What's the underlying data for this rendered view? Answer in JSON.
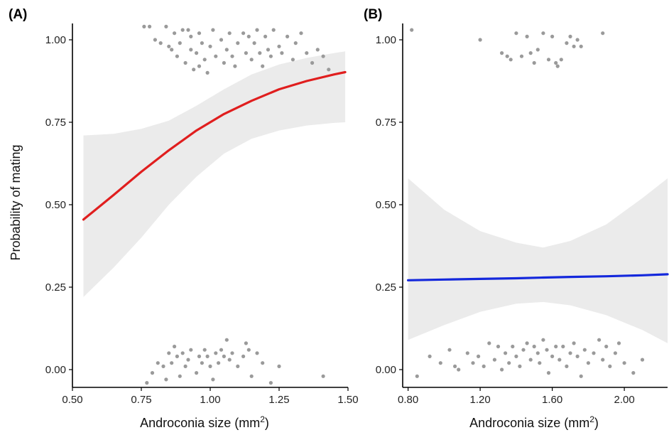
{
  "chart_data": [
    {
      "type": "line",
      "panel_label": "(A)",
      "xlabel": "Androconia size (mm²)",
      "ylabel": "Probability of mating",
      "xlim": [
        0.5,
        1.5
      ],
      "ylim": [
        0,
        1
      ],
      "x_ticks": [
        "0.50",
        "0.75",
        "1.00",
        "1.25",
        "1.50"
      ],
      "y_ticks": [
        "0.00",
        "0.25",
        "0.50",
        "0.75",
        "1.00"
      ],
      "grid": false,
      "line_color": "#e01e1e",
      "fit": {
        "x": [
          0.54,
          0.65,
          0.75,
          0.85,
          0.95,
          1.05,
          1.15,
          1.25,
          1.35,
          1.45,
          1.49
        ],
        "y": [
          0.455,
          0.53,
          0.6,
          0.665,
          0.725,
          0.775,
          0.815,
          0.85,
          0.875,
          0.895,
          0.902
        ],
        "lower": [
          0.22,
          0.31,
          0.4,
          0.5,
          0.585,
          0.655,
          0.7,
          0.725,
          0.74,
          0.748,
          0.75
        ],
        "upper": [
          0.71,
          0.715,
          0.73,
          0.755,
          0.8,
          0.85,
          0.895,
          0.925,
          0.945,
          0.96,
          0.965
        ]
      },
      "points": [
        {
          "x": 0.76,
          "y": 1.04
        },
        {
          "x": 0.78,
          "y": 1.04
        },
        {
          "x": 0.8,
          "y": 1.0
        },
        {
          "x": 0.82,
          "y": 0.99
        },
        {
          "x": 0.84,
          "y": 1.04
        },
        {
          "x": 0.85,
          "y": 0.98
        },
        {
          "x": 0.86,
          "y": 0.97
        },
        {
          "x": 0.87,
          "y": 1.02
        },
        {
          "x": 0.88,
          "y": 0.95
        },
        {
          "x": 0.89,
          "y": 0.99
        },
        {
          "x": 0.9,
          "y": 1.03
        },
        {
          "x": 0.91,
          "y": 0.93
        },
        {
          "x": 0.92,
          "y": 1.03
        },
        {
          "x": 0.93,
          "y": 0.97
        },
        {
          "x": 0.94,
          "y": 0.91
        },
        {
          "x": 0.95,
          "y": 0.96
        },
        {
          "x": 0.96,
          "y": 0.92
        },
        {
          "x": 0.97,
          "y": 0.99
        },
        {
          "x": 0.98,
          "y": 0.94
        },
        {
          "x": 0.99,
          "y": 0.9
        },
        {
          "x": 1.0,
          "y": 0.98
        },
        {
          "x": 1.01,
          "y": 1.03
        },
        {
          "x": 1.02,
          "y": 0.95
        },
        {
          "x": 1.04,
          "y": 1.0
        },
        {
          "x": 1.05,
          "y": 0.93
        },
        {
          "x": 1.06,
          "y": 0.97
        },
        {
          "x": 1.07,
          "y": 1.02
        },
        {
          "x": 1.08,
          "y": 0.95
        },
        {
          "x": 1.09,
          "y": 0.92
        },
        {
          "x": 1.1,
          "y": 0.99
        },
        {
          "x": 1.12,
          "y": 1.02
        },
        {
          "x": 1.13,
          "y": 0.96
        },
        {
          "x": 1.14,
          "y": 1.01
        },
        {
          "x": 1.15,
          "y": 0.94
        },
        {
          "x": 1.16,
          "y": 0.99
        },
        {
          "x": 1.17,
          "y": 1.03
        },
        {
          "x": 1.18,
          "y": 0.96
        },
        {
          "x": 1.19,
          "y": 0.92
        },
        {
          "x": 1.2,
          "y": 1.01
        },
        {
          "x": 1.21,
          "y": 0.97
        },
        {
          "x": 1.22,
          "y": 0.95
        },
        {
          "x": 1.23,
          "y": 1.03
        },
        {
          "x": 1.25,
          "y": 0.98
        },
        {
          "x": 1.26,
          "y": 0.96
        },
        {
          "x": 1.28,
          "y": 1.01
        },
        {
          "x": 1.3,
          "y": 0.94
        },
        {
          "x": 1.31,
          "y": 0.99
        },
        {
          "x": 1.33,
          "y": 1.02
        },
        {
          "x": 1.35,
          "y": 0.96
        },
        {
          "x": 1.37,
          "y": 0.93
        },
        {
          "x": 1.39,
          "y": 0.97
        },
        {
          "x": 1.41,
          "y": 0.95
        },
        {
          "x": 1.43,
          "y": 0.91
        },
        {
          "x": 0.93,
          "y": 1.01
        },
        {
          "x": 0.96,
          "y": 1.02
        },
        {
          "x": 0.77,
          "y": -0.04
        },
        {
          "x": 0.79,
          "y": -0.01
        },
        {
          "x": 0.81,
          "y": 0.02
        },
        {
          "x": 0.83,
          "y": 0.01
        },
        {
          "x": 0.84,
          "y": -0.03
        },
        {
          "x": 0.85,
          "y": 0.05
        },
        {
          "x": 0.86,
          "y": 0.02
        },
        {
          "x": 0.87,
          "y": 0.07
        },
        {
          "x": 0.88,
          "y": 0.04
        },
        {
          "x": 0.89,
          "y": -0.02
        },
        {
          "x": 0.9,
          "y": 0.05
        },
        {
          "x": 0.91,
          "y": 0.01
        },
        {
          "x": 0.92,
          "y": 0.03
        },
        {
          "x": 0.93,
          "y": 0.06
        },
        {
          "x": 0.95,
          "y": -0.01
        },
        {
          "x": 0.96,
          "y": 0.04
        },
        {
          "x": 0.97,
          "y": 0.02
        },
        {
          "x": 0.98,
          "y": 0.06
        },
        {
          "x": 0.99,
          "y": 0.04
        },
        {
          "x": 1.0,
          "y": 0.01
        },
        {
          "x": 1.01,
          "y": -0.03
        },
        {
          "x": 1.02,
          "y": 0.05
        },
        {
          "x": 1.03,
          "y": 0.02
        },
        {
          "x": 1.04,
          "y": 0.06
        },
        {
          "x": 1.05,
          "y": 0.04
        },
        {
          "x": 1.06,
          "y": 0.09
        },
        {
          "x": 1.07,
          "y": 0.03
        },
        {
          "x": 1.08,
          "y": 0.05
        },
        {
          "x": 1.1,
          "y": 0.01
        },
        {
          "x": 1.12,
          "y": 0.04
        },
        {
          "x": 1.13,
          "y": 0.08
        },
        {
          "x": 1.14,
          "y": 0.06
        },
        {
          "x": 1.15,
          "y": -0.02
        },
        {
          "x": 1.17,
          "y": 0.05
        },
        {
          "x": 1.19,
          "y": 0.02
        },
        {
          "x": 1.22,
          "y": -0.04
        },
        {
          "x": 1.25,
          "y": 0.01
        },
        {
          "x": 1.41,
          "y": -0.02
        }
      ]
    },
    {
      "type": "line",
      "panel_label": "(B)",
      "xlabel": "Androconia size (mm²)",
      "ylabel": "",
      "xlim": [
        0.77,
        2.24
      ],
      "ylim": [
        0,
        1
      ],
      "x_ticks": [
        "0.80",
        "1.20",
        "1.60",
        "2.00"
      ],
      "y_ticks": [
        "0.00",
        "0.25",
        "0.50",
        "0.75",
        "1.00"
      ],
      "grid": false,
      "line_color": "#1428dc",
      "fit": {
        "x": [
          0.8,
          1.0,
          1.2,
          1.4,
          1.55,
          1.7,
          1.9,
          2.1,
          2.24
        ],
        "y": [
          0.271,
          0.273,
          0.275,
          0.277,
          0.279,
          0.281,
          0.283,
          0.286,
          0.289
        ],
        "lower": [
          0.09,
          0.135,
          0.175,
          0.2,
          0.205,
          0.195,
          0.165,
          0.12,
          0.08
        ],
        "upper": [
          0.58,
          0.485,
          0.42,
          0.385,
          0.37,
          0.39,
          0.44,
          0.52,
          0.58
        ]
      },
      "points": [
        {
          "x": 0.82,
          "y": 1.03
        },
        {
          "x": 1.2,
          "y": 1.0
        },
        {
          "x": 1.32,
          "y": 0.96
        },
        {
          "x": 1.35,
          "y": 0.95
        },
        {
          "x": 1.37,
          "y": 0.94
        },
        {
          "x": 1.4,
          "y": 1.02
        },
        {
          "x": 1.43,
          "y": 0.95
        },
        {
          "x": 1.46,
          "y": 1.01
        },
        {
          "x": 1.48,
          "y": 0.96
        },
        {
          "x": 1.5,
          "y": 0.93
        },
        {
          "x": 1.52,
          "y": 0.97
        },
        {
          "x": 1.55,
          "y": 1.02
        },
        {
          "x": 1.58,
          "y": 0.94
        },
        {
          "x": 1.6,
          "y": 1.01
        },
        {
          "x": 1.62,
          "y": 0.93
        },
        {
          "x": 1.63,
          "y": 0.92
        },
        {
          "x": 1.65,
          "y": 0.94
        },
        {
          "x": 1.68,
          "y": 0.99
        },
        {
          "x": 1.7,
          "y": 1.01
        },
        {
          "x": 1.72,
          "y": 0.98
        },
        {
          "x": 1.74,
          "y": 1.0
        },
        {
          "x": 1.76,
          "y": 0.98
        },
        {
          "x": 1.88,
          "y": 1.02
        },
        {
          "x": 0.85,
          "y": -0.02
        },
        {
          "x": 0.92,
          "y": 0.04
        },
        {
          "x": 0.98,
          "y": 0.02
        },
        {
          "x": 1.03,
          "y": 0.06
        },
        {
          "x": 1.06,
          "y": 0.01
        },
        {
          "x": 1.08,
          "y": 0.0
        },
        {
          "x": 1.13,
          "y": 0.05
        },
        {
          "x": 1.16,
          "y": 0.02
        },
        {
          "x": 1.19,
          "y": 0.04
        },
        {
          "x": 1.22,
          "y": 0.01
        },
        {
          "x": 1.25,
          "y": 0.08
        },
        {
          "x": 1.28,
          "y": 0.03
        },
        {
          "x": 1.3,
          "y": 0.07
        },
        {
          "x": 1.32,
          "y": 0.0
        },
        {
          "x": 1.34,
          "y": 0.05
        },
        {
          "x": 1.36,
          "y": 0.02
        },
        {
          "x": 1.38,
          "y": 0.07
        },
        {
          "x": 1.4,
          "y": 0.04
        },
        {
          "x": 1.42,
          "y": 0.01
        },
        {
          "x": 1.44,
          "y": 0.06
        },
        {
          "x": 1.46,
          "y": 0.08
        },
        {
          "x": 1.48,
          "y": 0.03
        },
        {
          "x": 1.5,
          "y": 0.07
        },
        {
          "x": 1.52,
          "y": 0.05
        },
        {
          "x": 1.53,
          "y": 0.02
        },
        {
          "x": 1.55,
          "y": 0.09
        },
        {
          "x": 1.57,
          "y": 0.06
        },
        {
          "x": 1.58,
          "y": -0.01
        },
        {
          "x": 1.6,
          "y": 0.04
        },
        {
          "x": 1.62,
          "y": 0.07
        },
        {
          "x": 1.64,
          "y": 0.03
        },
        {
          "x": 1.66,
          "y": 0.07
        },
        {
          "x": 1.68,
          "y": 0.01
        },
        {
          "x": 1.7,
          "y": 0.05
        },
        {
          "x": 1.72,
          "y": 0.08
        },
        {
          "x": 1.74,
          "y": 0.04
        },
        {
          "x": 1.76,
          "y": -0.02
        },
        {
          "x": 1.78,
          "y": 0.06
        },
        {
          "x": 1.8,
          "y": 0.02
        },
        {
          "x": 1.83,
          "y": 0.05
        },
        {
          "x": 1.86,
          "y": 0.09
        },
        {
          "x": 1.88,
          "y": 0.03
        },
        {
          "x": 1.9,
          "y": 0.07
        },
        {
          "x": 1.92,
          "y": 0.01
        },
        {
          "x": 1.95,
          "y": 0.05
        },
        {
          "x": 1.97,
          "y": 0.08
        },
        {
          "x": 2.0,
          "y": 0.02
        },
        {
          "x": 2.05,
          "y": -0.01
        },
        {
          "x": 2.1,
          "y": 0.03
        }
      ]
    }
  ]
}
